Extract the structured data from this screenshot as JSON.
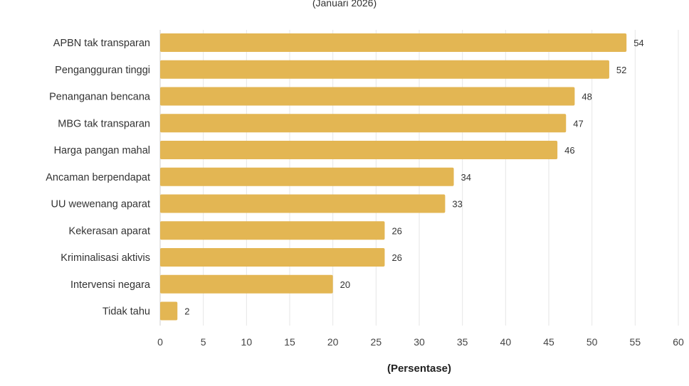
{
  "chart_data": {
    "type": "bar",
    "orientation": "horizontal",
    "subtitle": "(Januari 2026)",
    "xlabel": "(Persentase)",
    "ylabel": "",
    "xlim": [
      0,
      60
    ],
    "xticks": [
      0,
      5,
      10,
      15,
      20,
      25,
      30,
      35,
      40,
      45,
      50,
      55,
      60
    ],
    "grid": true,
    "bar_color": "#E3B653",
    "categories": [
      "APBN tak transparan",
      "Pengangguran tinggi",
      "Penanganan bencana",
      "MBG tak transparan",
      "Harga pangan mahal",
      "Ancaman berpendapat",
      "UU wewenang aparat",
      "Kekerasan aparat",
      "Kriminalisasi aktivis",
      "Intervensi negara",
      "Tidak tahu"
    ],
    "values": [
      54,
      52,
      48,
      47,
      46,
      34,
      33,
      26,
      26,
      20,
      2
    ]
  }
}
